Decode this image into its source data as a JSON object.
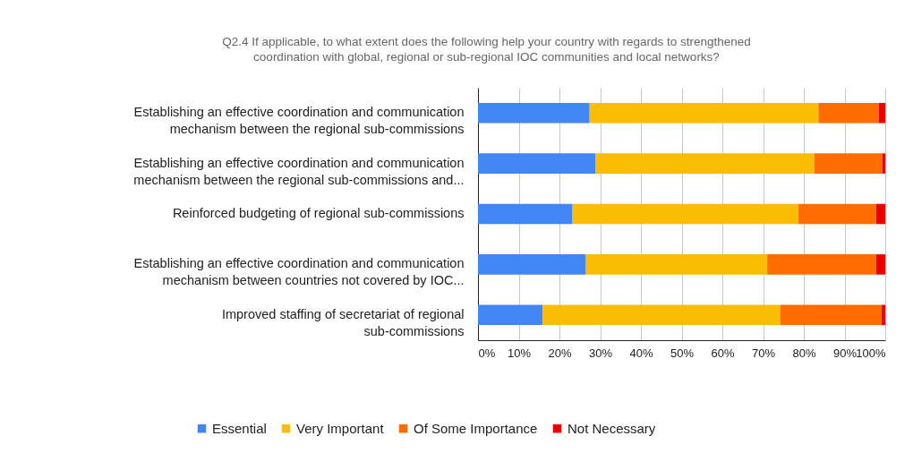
{
  "chart_data": {
    "type": "bar",
    "orientation": "horizontal",
    "stacked": true,
    "title": "Q2.4 If applicable, to what extent does the following help your country with regards to strengthened coordination with global, regional or sub-regional IOC communities and local networks?",
    "categories": [
      "Establishing an effective coordination and communication mechanism between the regional sub-commissions",
      "Establishing an effective coordination and communication mechanism between the regional sub-commissions and...",
      "Reinforced budgeting of regional sub-commissions",
      "Establishing an effective coordination and communication mechanism between countries not covered by IOC...",
      "Improved staffing of secretariat of regional sub-commissions"
    ],
    "series": [
      {
        "name": "Essential",
        "color": "#4285f4",
        "values": [
          27.4,
          28.9,
          23.2,
          26.5,
          15.9
        ]
      },
      {
        "name": "Very Important",
        "color": "#fbbc04",
        "values": [
          56.2,
          53.7,
          55.5,
          44.5,
          58.3
        ]
      },
      {
        "name": "Of Some Importance",
        "color": "#ff6d01",
        "values": [
          14.8,
          16.7,
          19.1,
          26.8,
          24.9
        ]
      },
      {
        "name": "Not Necessary",
        "color": "#ea0000",
        "values": [
          1.6,
          0.7,
          2.2,
          2.2,
          0.9
        ]
      }
    ],
    "xlim": [
      0,
      100
    ],
    "xticks": [
      {
        "value": 0,
        "label": "0%"
      },
      {
        "value": 10,
        "label": "10%"
      },
      {
        "value": 20,
        "label": "20%"
      },
      {
        "value": 30,
        "label": "30%"
      },
      {
        "value": 40,
        "label": "40%"
      },
      {
        "value": 50,
        "label": "50%"
      },
      {
        "value": 60,
        "label": "60%"
      },
      {
        "value": 70,
        "label": "70%"
      },
      {
        "value": 80,
        "label": "80%"
      },
      {
        "value": 90,
        "label": "90%"
      },
      {
        "value": 100,
        "label": "100%"
      }
    ],
    "grid": "x",
    "legend": "bottom"
  }
}
